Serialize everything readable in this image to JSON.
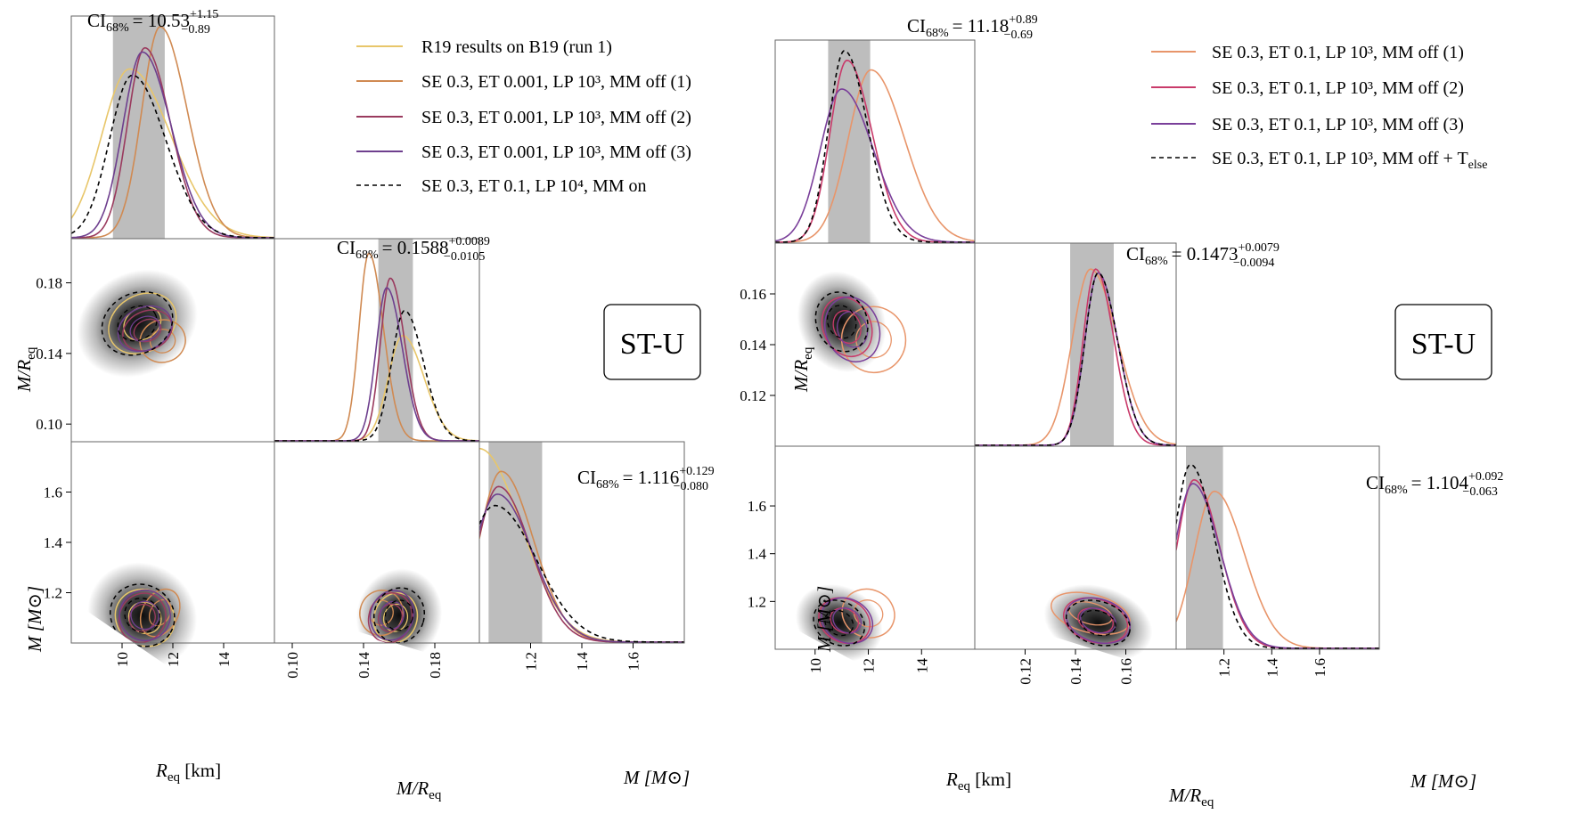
{
  "figure_panels": [
    {
      "id": "left",
      "badge": "ST-U",
      "ci_titles": [
        {
          "main": "CI",
          "sub": "68%",
          "value": "= 10.53",
          "sup": "+1.15",
          "inf": "−0.89"
        },
        {
          "main": "CI",
          "sub": "68%",
          "value": "= 0.1588",
          "sup": "+0.0089",
          "inf": "−0.0105"
        },
        {
          "main": "CI",
          "sub": "68%",
          "value": "= 1.116",
          "sup": "+0.129",
          "inf": "−0.080"
        }
      ],
      "legend": [
        {
          "label": "R19 results on B19 (run 1)",
          "color": "#e8c66a",
          "dash": false
        },
        {
          "label": "SE 0.3, ET 0.001, LP 10³, MM off (1)",
          "color": "#d08a52",
          "dash": false
        },
        {
          "label": "SE 0.3, ET 0.001, LP 10³, MM off (2)",
          "color": "#9a3a5e",
          "dash": false
        },
        {
          "label": "SE 0.3, ET 0.001, LP 10³, MM off (3)",
          "color": "#6e3f8e",
          "dash": false
        },
        {
          "label": "SE 0.3, ET 0.1, LP 10⁴, MM on",
          "color": "#000000",
          "dash": true
        }
      ],
      "axis_labels": {
        "req_x": "R",
        "req_x_sub": "eq",
        "req_x_unit": " [km]",
        "mr_x": "M/R",
        "mr_x_sub": "eq",
        "m_x": "M [M⊙]",
        "mr_y": "M/R",
        "mr_y_sub": "eq",
        "m_y": "M [M⊙]"
      }
    },
    {
      "id": "right",
      "badge": "ST-U",
      "ci_titles": [
        {
          "main": "CI",
          "sub": "68%",
          "value": "= 11.18",
          "sup": "+0.89",
          "inf": "−0.69"
        },
        {
          "main": "CI",
          "sub": "68%",
          "value": "= 0.1473",
          "sup": "+0.0079",
          "inf": "−0.0094"
        },
        {
          "main": "CI",
          "sub": "68%",
          "value": "= 1.104",
          "sup": "+0.092",
          "inf": "−0.063"
        }
      ],
      "legend": [
        {
          "label": "SE 0.3, ET 0.1, LP 10³, MM off (1)",
          "color": "#e8956a",
          "dash": false
        },
        {
          "label": "SE 0.3, ET 0.1, LP 10³, MM off (2)",
          "color": "#c93a6a",
          "dash": false
        },
        {
          "label": "SE 0.3, ET 0.1, LP 10³, MM off (3)",
          "color": "#7a3f9a",
          "dash": false
        },
        {
          "label": "SE 0.3, ET 0.1, LP 10³, MM off + T",
          "label_sub": "else",
          "color": "#000000",
          "dash": true
        }
      ],
      "axis_labels": {
        "req_x": "R",
        "req_x_sub": "eq",
        "req_x_unit": " [km]",
        "mr_x": "M/R",
        "mr_x_sub": "eq",
        "m_x": "M [M⊙]",
        "mr_y": "M/R",
        "mr_y_sub": "eq",
        "m_y": "M [M⊙]"
      }
    }
  ],
  "chart_data": [
    {
      "type": "corner",
      "panel": "left",
      "title": "ST-U",
      "parameters": [
        "R_eq [km]",
        "M/R_eq",
        "M [M⊙]"
      ],
      "ranges": {
        "R_eq": [
          8.0,
          16.0
        ],
        "M_over_R": [
          0.09,
          0.205
        ],
        "M": [
          1.0,
          1.8
        ]
      },
      "ticks": {
        "R_eq": {
          "values": [
            10,
            12,
            14
          ],
          "labels": [
            "10",
            "12",
            "14"
          ]
        },
        "M_over_R": {
          "values": [
            0.1,
            0.14,
            0.18
          ],
          "labels": [
            "0.10",
            "0.14",
            "0.18"
          ]
        },
        "M": {
          "values": [
            1.2,
            1.4,
            1.6
          ],
          "labels": [
            "1.2",
            "1.4",
            "1.6"
          ]
        }
      },
      "credible_intervals": {
        "R_eq": {
          "median": 10.53,
          "plus": 1.15,
          "minus": 0.89
        },
        "M_over_R": {
          "median": 0.1588,
          "plus": 0.0089,
          "minus": 0.0105
        },
        "M": {
          "median": 1.116,
          "plus": 0.129,
          "minus": 0.08
        }
      },
      "series": [
        {
          "name": "R19 results on B19 (run 1)",
          "R_eq": {
            "mode": 10.3,
            "width": 1.3,
            "peak": 0.8
          },
          "M_over_R": {
            "mode": 0.162,
            "width": 0.0095,
            "peak": 0.55
          },
          "M": {
            "mode": 1.0,
            "width": 0.13,
            "peak": 1.02
          },
          "contour_MR_R": {
            "cx": 10.8,
            "cy": 0.157,
            "rx": 1.4,
            "ry": 0.016,
            "angle": -0.55
          },
          "contour_M_R": {
            "cx": 10.9,
            "cy": 1.1,
            "rx": 1.2,
            "ry": 0.11,
            "angle": 0.6
          },
          "contour_M_MR": {
            "cx": 0.158,
            "cy": 1.1,
            "rx": 0.012,
            "ry": 0.1,
            "angle": 0.3
          }
        },
        {
          "name": "SE 0.3, ET 0.001, LP 10³, MM off (1)",
          "R_eq": {
            "mode": 11.5,
            "width": 0.85,
            "peak": 1.0
          },
          "M_over_R": {
            "mode": 0.143,
            "width": 0.0065,
            "peak": 0.98
          },
          "M": {
            "mode": 1.085,
            "width": 0.1,
            "peak": 0.9
          },
          "contour_MR_R": {
            "cx": 11.6,
            "cy": 0.147,
            "rx": 0.9,
            "ry": 0.012,
            "angle": -0.3
          },
          "contour_M_R": {
            "cx": 11.5,
            "cy": 1.12,
            "rx": 0.7,
            "ry": 0.1,
            "angle": 0.5
          },
          "contour_M_MR": {
            "cx": 0.15,
            "cy": 1.12,
            "rx": 0.012,
            "ry": 0.09,
            "angle": 0.3
          }
        },
        {
          "name": "SE 0.3, ET 0.001, LP 10³, MM off (2)",
          "R_eq": {
            "mode": 10.9,
            "width": 0.8,
            "peak": 0.9
          },
          "M_over_R": {
            "mode": 0.155,
            "width": 0.0065,
            "peak": 0.85
          },
          "M": {
            "mode": 1.075,
            "width": 0.1,
            "peak": 0.82
          },
          "contour_MR_R": {
            "cx": 11.0,
            "cy": 0.153,
            "rx": 1.0,
            "ry": 0.011,
            "angle": -0.4
          },
          "contour_M_R": {
            "cx": 10.8,
            "cy": 1.1,
            "rx": 0.9,
            "ry": 0.1,
            "angle": 0.5
          },
          "contour_M_MR": {
            "cx": 0.155,
            "cy": 1.1,
            "rx": 0.012,
            "ry": 0.1,
            "angle": 0.3
          }
        },
        {
          "name": "SE 0.3, ET 0.001, LP 10³, MM off (3)",
          "R_eq": {
            "mode": 10.8,
            "width": 0.9,
            "peak": 0.88
          },
          "M_over_R": {
            "mode": 0.153,
            "width": 0.007,
            "peak": 0.8
          },
          "M": {
            "mode": 1.07,
            "width": 0.11,
            "peak": 0.78
          },
          "contour_MR_R": {
            "cx": 10.9,
            "cy": 0.154,
            "rx": 1.1,
            "ry": 0.012,
            "angle": -0.45
          },
          "contour_M_R": {
            "cx": 10.9,
            "cy": 1.11,
            "rx": 1.0,
            "ry": 0.1,
            "angle": 0.5
          },
          "contour_M_MR": {
            "cx": 0.156,
            "cy": 1.11,
            "rx": 0.012,
            "ry": 0.1,
            "angle": 0.3
          }
        },
        {
          "name": "SE 0.3, ET 0.1, LP 10⁴, MM on",
          "R_eq": {
            "mode": 10.4,
            "width": 1.05,
            "peak": 0.77
          },
          "M_over_R": {
            "mode": 0.163,
            "width": 0.0085,
            "peak": 0.68
          },
          "M": {
            "mode": 1.06,
            "width": 0.13,
            "peak": 0.72
          },
          "contour_MR_R": {
            "cx": 10.6,
            "cy": 0.157,
            "rx": 1.45,
            "ry": 0.017,
            "angle": -0.5
          },
          "contour_M_R": {
            "cx": 10.8,
            "cy": 1.11,
            "rx": 1.3,
            "ry": 0.12,
            "angle": 0.6
          },
          "contour_M_MR": {
            "cx": 0.16,
            "cy": 1.11,
            "rx": 0.014,
            "ry": 0.11,
            "angle": 0.3
          }
        }
      ]
    },
    {
      "type": "corner",
      "panel": "right",
      "title": "ST-U",
      "parameters": [
        "R_eq [km]",
        "M/R_eq",
        "M [M⊙]"
      ],
      "ranges": {
        "R_eq": [
          8.5,
          16.0
        ],
        "M_over_R": [
          0.1,
          0.18
        ],
        "M": [
          1.0,
          1.85
        ]
      },
      "ticks": {
        "R_eq": {
          "values": [
            10,
            12,
            14
          ],
          "labels": [
            "10",
            "12",
            "14"
          ]
        },
        "M_over_R": {
          "values": [
            0.12,
            0.14,
            0.16
          ],
          "labels": [
            "0.12",
            "0.14",
            "0.16"
          ]
        },
        "M_over_R_y": {
          "values": [
            0.12,
            0.14,
            0.16
          ],
          "labels": [
            "0.12",
            "0.14",
            "0.16"
          ]
        },
        "M": {
          "values": [
            1.2,
            1.4,
            1.6
          ],
          "labels": [
            "1.2",
            "1.4",
            "1.6"
          ]
        }
      },
      "credible_intervals": {
        "R_eq": {
          "median": 11.18,
          "plus": 0.89,
          "minus": 0.69
        },
        "M_over_R": {
          "median": 0.1473,
          "plus": 0.0079,
          "minus": 0.0094
        },
        "M": {
          "median": 1.104,
          "plus": 0.092,
          "minus": 0.063
        }
      },
      "series": [
        {
          "name": "SE 0.3, ET 0.1, LP 10³, MM off (1)",
          "R_eq": {
            "mode": 12.1,
            "width": 1.0,
            "peak": 0.9
          },
          "M_over_R": {
            "mode": 0.146,
            "width": 0.0085,
            "peak": 0.92
          },
          "M": {
            "mode": 1.16,
            "width": 0.1,
            "peak": 0.82
          },
          "contour_MR_R": {
            "cx": 12.2,
            "cy": 0.142,
            "rx": 1.2,
            "ry": 0.013,
            "angle": -0.2
          },
          "contour_M_R": {
            "cx": 12.0,
            "cy": 1.15,
            "rx": 1.0,
            "ry": 0.1,
            "angle": 0.4
          },
          "contour_M_MR": {
            "cx": 0.146,
            "cy": 1.15,
            "rx": 0.016,
            "ry": 0.08,
            "angle": 0.25
          }
        },
        {
          "name": "SE 0.3, ET 0.1, LP 10³, MM off (2)",
          "R_eq": {
            "mode": 11.2,
            "width": 0.75,
            "peak": 0.95
          },
          "M_over_R": {
            "mode": 0.148,
            "width": 0.0058,
            "peak": 0.92
          },
          "M": {
            "mode": 1.075,
            "width": 0.085,
            "peak": 0.88
          },
          "contour_MR_R": {
            "cx": 11.2,
            "cy": 0.147,
            "rx": 0.9,
            "ry": 0.012,
            "angle": -0.4
          },
          "contour_M_R": {
            "cx": 11.1,
            "cy": 1.12,
            "rx": 1.0,
            "ry": 0.09,
            "angle": 0.5
          },
          "contour_M_MR": {
            "cx": 0.148,
            "cy": 1.12,
            "rx": 0.013,
            "ry": 0.09,
            "angle": 0.3
          }
        },
        {
          "name": "SE 0.3, ET 0.1, LP 10³, MM off (3)",
          "R_eq": {
            "mode": 11.0,
            "width": 0.95,
            "peak": 0.8
          },
          "M_over_R": {
            "mode": 0.149,
            "width": 0.0062,
            "peak": 0.9
          },
          "M": {
            "mode": 1.07,
            "width": 0.09,
            "peak": 0.86
          },
          "contour_MR_R": {
            "cx": 11.4,
            "cy": 0.146,
            "rx": 1.0,
            "ry": 0.013,
            "angle": -0.35
          },
          "contour_M_R": {
            "cx": 11.2,
            "cy": 1.12,
            "rx": 1.0,
            "ry": 0.09,
            "angle": 0.5
          },
          "contour_M_MR": {
            "cx": 0.149,
            "cy": 1.12,
            "rx": 0.013,
            "ry": 0.09,
            "angle": 0.3
          }
        },
        {
          "name": "SE 0.3, ET 0.1, LP 10³, MM off + T_else",
          "R_eq": {
            "mode": 11.1,
            "width": 0.7,
            "peak": 1.0
          },
          "M_over_R": {
            "mode": 0.149,
            "width": 0.0062,
            "peak": 0.9
          },
          "M": {
            "mode": 1.06,
            "width": 0.08,
            "peak": 0.96
          },
          "contour_MR_R": {
            "cx": 11.0,
            "cy": 0.149,
            "rx": 0.95,
            "ry": 0.012,
            "angle": -0.4
          },
          "contour_M_R": {
            "cx": 10.9,
            "cy": 1.11,
            "rx": 1.0,
            "ry": 0.09,
            "angle": 0.5
          },
          "contour_M_MR": {
            "cx": 0.149,
            "cy": 1.11,
            "rx": 0.013,
            "ry": 0.09,
            "angle": 0.3
          }
        }
      ]
    }
  ]
}
